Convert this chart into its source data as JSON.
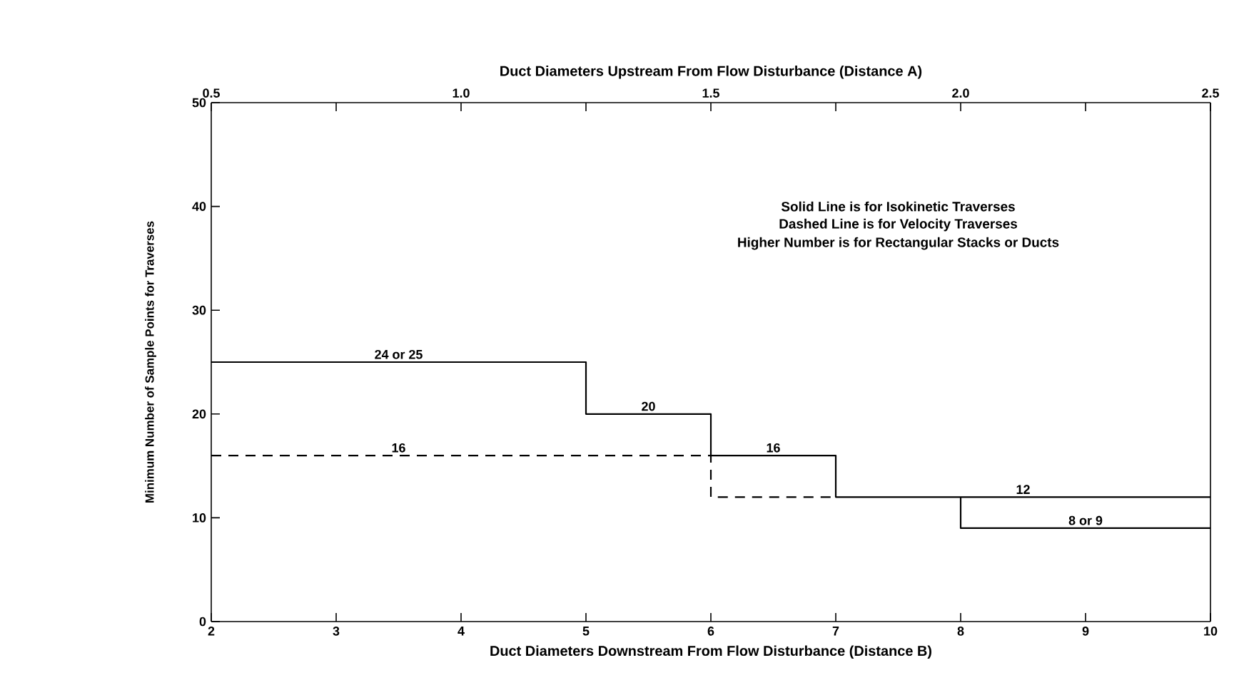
{
  "chart_data": {
    "type": "step",
    "xlabel": "Duct Diameters Downstream From Flow Disturbance (Distance B)",
    "x2label": "Duct Diameters Upstream From Flow Disturbance (Distance A)",
    "ylabel": "Minimum Number of Sample Points for Traverses",
    "xlim": [
      2,
      10
    ],
    "xticks": [
      2,
      3,
      4,
      5,
      6,
      7,
      8,
      9,
      10
    ],
    "x2lim": [
      0.5,
      2.5
    ],
    "x2ticks": [
      {
        "value": 0.5,
        "label": "0.5"
      },
      {
        "value": 0.75,
        "label": null
      },
      {
        "value": 1.0,
        "label": "1.0"
      },
      {
        "value": 1.25,
        "label": null
      },
      {
        "value": 1.5,
        "label": "1.5"
      },
      {
        "value": 1.75,
        "label": null
      },
      {
        "value": 2.0,
        "label": "2.0"
      },
      {
        "value": 2.25,
        "label": null
      },
      {
        "value": 2.5,
        "label": "2.5"
      }
    ],
    "ylim": [
      0,
      50
    ],
    "yticks": [
      0,
      10,
      20,
      30,
      40,
      50
    ],
    "series": [
      {
        "color": "#000000",
        "line_style": "solid",
        "x": [
          2,
          5,
          6,
          7,
          10
        ],
        "values": [
          25,
          20,
          16,
          12,
          12
        ]
      },
      {
        "type": "line",
        "color": "#000000",
        "line_style": "solid",
        "x": [
          8,
          8,
          10
        ],
        "values": [
          12,
          9,
          9
        ]
      },
      {
        "color": "#000000",
        "line_style": "dashed",
        "x": [
          2,
          6,
          7
        ],
        "values": [
          16,
          12,
          12
        ]
      }
    ],
    "annotations": [
      {
        "text": "24 or 25",
        "x": 3.5,
        "y": 25
      },
      {
        "text": "20",
        "x": 5.5,
        "y": 20
      },
      {
        "text": "16",
        "x": 3.5,
        "y": 16
      },
      {
        "text": "16",
        "x": 6.5,
        "y": 16
      },
      {
        "text": "12",
        "x": 8.5,
        "y": 12
      },
      {
        "text": "8 or 9",
        "x": 9,
        "y": 9
      },
      "Solid Line is for Isokinetic Traverses",
      "Dashed Line is for Velocity Traverses",
      "Higher Number is for Rectangular Stacks or Ducts"
    ]
  }
}
